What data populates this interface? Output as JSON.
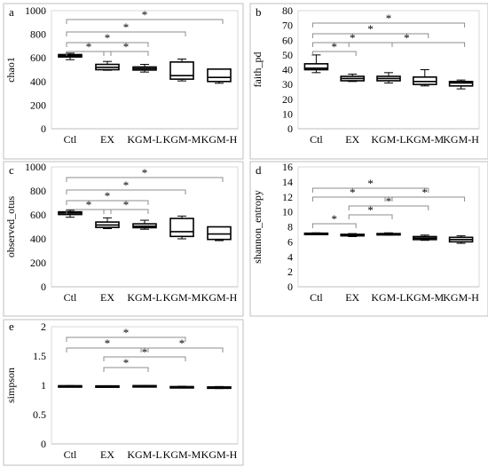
{
  "chart_data": [
    {
      "panel": "a",
      "type": "box",
      "ylabel": "chao1",
      "ylim": [
        0,
        1000
      ],
      "yticks": [
        0,
        200,
        400,
        600,
        800,
        1000
      ],
      "categories": [
        "Ctl",
        "EX",
        "KGM-L",
        "KGM-M",
        "KGM-H"
      ],
      "boxes": [
        {
          "min": 585,
          "q1": 608,
          "median": 618,
          "q3": 628,
          "max": 640
        },
        {
          "min": 495,
          "q1": 500,
          "median": 520,
          "q3": 545,
          "max": 570
        },
        {
          "min": 480,
          "q1": 497,
          "median": 510,
          "q3": 523,
          "max": 545
        },
        {
          "min": 405,
          "q1": 420,
          "median": 450,
          "q3": 565,
          "max": 590
        },
        {
          "min": 385,
          "q1": 400,
          "median": 435,
          "q3": 505,
          "max": 505
        }
      ],
      "significance": [
        {
          "from": "Ctl",
          "to": "EX",
          "label": "*"
        },
        {
          "from": "EX",
          "to": "KGM-L",
          "label": "*"
        },
        {
          "from": "Ctl",
          "to": "KGM-L",
          "label": "*"
        },
        {
          "from": "Ctl",
          "to": "KGM-M",
          "label": "*"
        },
        {
          "from": "Ctl",
          "to": "KGM-H",
          "label": "*"
        }
      ]
    },
    {
      "panel": "b",
      "type": "box",
      "ylabel": "faith_pd",
      "ylim": [
        0,
        80
      ],
      "yticks": [
        0,
        10,
        20,
        30,
        40,
        50,
        60,
        70,
        80
      ],
      "categories": [
        "Ctl",
        "EX",
        "KGM-L",
        "KGM-M",
        "KGM-H"
      ],
      "boxes": [
        {
          "min": 38,
          "q1": 40,
          "median": 41,
          "q3": 44,
          "max": 50
        },
        {
          "min": 32,
          "q1": 32.5,
          "median": 34,
          "q3": 35.5,
          "max": 37
        },
        {
          "min": 31,
          "q1": 32.5,
          "median": 34,
          "q3": 35.5,
          "max": 38
        },
        {
          "min": 29,
          "q1": 30,
          "median": 32,
          "q3": 35,
          "max": 40
        },
        {
          "min": 27,
          "q1": 29,
          "median": 31,
          "q3": 32,
          "max": 33
        }
      ],
      "significance": [
        {
          "from": "Ctl",
          "to": "EX",
          "label": "*"
        },
        {
          "from": "Ctl",
          "to": "KGM-L",
          "label": "*"
        },
        {
          "from": "Ctl",
          "to": "KGM-M",
          "label": "*"
        },
        {
          "from": "EX",
          "to": "KGM-H",
          "label": "*"
        },
        {
          "from": "Ctl",
          "to": "KGM-H",
          "label": "*"
        }
      ]
    },
    {
      "panel": "c",
      "type": "box",
      "ylabel": "observed_otus",
      "ylim": [
        0,
        1000
      ],
      "yticks": [
        0,
        200,
        400,
        600,
        800,
        1000
      ],
      "categories": [
        "Ctl",
        "EX",
        "KGM-L",
        "KGM-M",
        "KGM-H"
      ],
      "boxes": [
        {
          "min": 580,
          "q1": 603,
          "median": 615,
          "q3": 625,
          "max": 638
        },
        {
          "min": 485,
          "q1": 495,
          "median": 515,
          "q3": 540,
          "max": 575
        },
        {
          "min": 480,
          "q1": 493,
          "median": 505,
          "q3": 525,
          "max": 555
        },
        {
          "min": 400,
          "q1": 420,
          "median": 460,
          "q3": 570,
          "max": 590
        },
        {
          "min": 385,
          "q1": 395,
          "median": 440,
          "q3": 500,
          "max": 500
        }
      ],
      "significance": [
        {
          "from": "Ctl",
          "to": "EX",
          "label": "*"
        },
        {
          "from": "EX",
          "to": "KGM-L",
          "label": "*"
        },
        {
          "from": "Ctl",
          "to": "KGM-L",
          "label": "*"
        },
        {
          "from": "Ctl",
          "to": "KGM-M",
          "label": "*"
        },
        {
          "from": "Ctl",
          "to": "KGM-H",
          "label": "*"
        }
      ]
    },
    {
      "panel": "d",
      "type": "box",
      "ylabel": "shannon_entropy",
      "ylim": [
        0,
        16
      ],
      "yticks": [
        0,
        2,
        4,
        6,
        8,
        10,
        12,
        14,
        16
      ],
      "categories": [
        "Ctl",
        "EX",
        "KGM-L",
        "KGM-M",
        "KGM-H"
      ],
      "boxes": [
        {
          "min": 7.0,
          "q1": 7.05,
          "median": 7.1,
          "q3": 7.15,
          "max": 7.2
        },
        {
          "min": 6.7,
          "q1": 6.8,
          "median": 6.9,
          "q3": 7.0,
          "max": 7.1
        },
        {
          "min": 6.9,
          "q1": 6.95,
          "median": 7.05,
          "q3": 7.1,
          "max": 7.2
        },
        {
          "min": 6.2,
          "q1": 6.3,
          "median": 6.5,
          "q3": 6.7,
          "max": 6.9
        },
        {
          "min": 5.8,
          "q1": 6.0,
          "median": 6.3,
          "q3": 6.6,
          "max": 6.8
        }
      ],
      "significance": [
        {
          "from": "Ctl",
          "to": "EX",
          "label": "*"
        },
        {
          "from": "EX",
          "to": "KGM-L",
          "label": "*"
        },
        {
          "from": "EX",
          "to": "KGM-M",
          "label": "*"
        },
        {
          "from": "Ctl",
          "to": "KGM-L",
          "label": "*"
        },
        {
          "from": "KGM-L",
          "to": "KGM-H",
          "label": "*"
        },
        {
          "from": "Ctl",
          "to": "KGM-M",
          "label": "*"
        }
      ]
    },
    {
      "panel": "e",
      "type": "box",
      "ylabel": "simpson",
      "ylim": [
        0,
        2
      ],
      "yticks": [
        0,
        0.5,
        1,
        1.5,
        2
      ],
      "categories": [
        "Ctl",
        "EX",
        "KGM-L",
        "KGM-M",
        "KGM-H"
      ],
      "boxes": [
        {
          "min": 0.985,
          "q1": 0.99,
          "median": 0.99,
          "q3": 0.992,
          "max": 0.995
        },
        {
          "min": 0.982,
          "q1": 0.985,
          "median": 0.988,
          "q3": 0.99,
          "max": 0.993
        },
        {
          "min": 0.988,
          "q1": 0.99,
          "median": 0.992,
          "q3": 0.994,
          "max": 0.996
        },
        {
          "min": 0.955,
          "q1": 0.965,
          "median": 0.972,
          "q3": 0.978,
          "max": 0.985
        },
        {
          "min": 0.945,
          "q1": 0.955,
          "median": 0.965,
          "q3": 0.972,
          "max": 0.98
        }
      ],
      "significance": [
        {
          "from": "EX",
          "to": "KGM-L",
          "label": "*"
        },
        {
          "from": "EX",
          "to": "KGM-M",
          "label": "*"
        },
        {
          "from": "Ctl",
          "to": "KGM-L",
          "label": "*"
        },
        {
          "from": "KGM-L",
          "to": "KGM-H",
          "label": "*"
        },
        {
          "from": "Ctl",
          "to": "KGM-M",
          "label": "*"
        }
      ]
    }
  ]
}
